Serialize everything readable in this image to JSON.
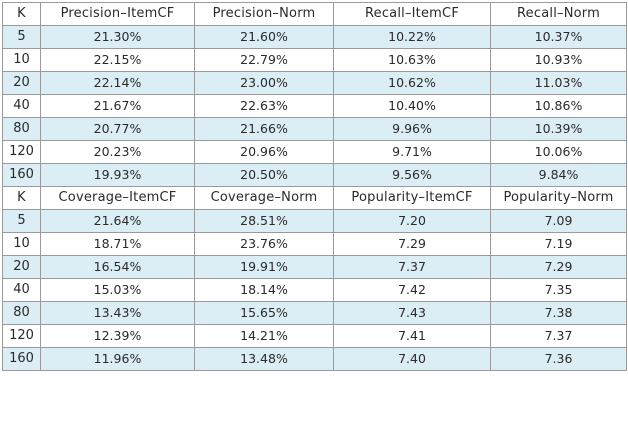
{
  "table": {
    "section1": {
      "headers": [
        "K",
        "Precision–ItemCF",
        "Precision–Norm",
        "Recall–ItemCF",
        "Recall–Norm"
      ],
      "rows": [
        [
          "5",
          "21.30%",
          "21.60%",
          "10.22%",
          "10.37%"
        ],
        [
          "10",
          "22.15%",
          "22.79%",
          "10.63%",
          "10.93%"
        ],
        [
          "20",
          "22.14%",
          "23.00%",
          "10.62%",
          "11.03%"
        ],
        [
          "40",
          "21.67%",
          "22.63%",
          "10.40%",
          "10.86%"
        ],
        [
          "80",
          "20.77%",
          "21.66%",
          "9.96%",
          "10.39%"
        ],
        [
          "120",
          "20.23%",
          "20.96%",
          "9.71%",
          "10.06%"
        ],
        [
          "160",
          "19.93%",
          "20.50%",
          "9.56%",
          "9.84%"
        ]
      ]
    },
    "section2": {
      "headers": [
        "K",
        "Coverage–ItemCF",
        "Coverage–Norm",
        "Popularity–ItemCF",
        "Popularity–Norm"
      ],
      "rows": [
        [
          "5",
          "21.64%",
          "28.51%",
          "7.20",
          "7.09"
        ],
        [
          "10",
          "18.71%",
          "23.76%",
          "7.29",
          "7.19"
        ],
        [
          "20",
          "16.54%",
          "19.91%",
          "7.37",
          "7.29"
        ],
        [
          "40",
          "15.03%",
          "18.14%",
          "7.42",
          "7.35"
        ],
        [
          "80",
          "13.43%",
          "15.65%",
          "7.43",
          "7.38"
        ],
        [
          "120",
          "12.39%",
          "14.21%",
          "7.41",
          "7.37"
        ],
        [
          "160",
          "11.96%",
          "13.48%",
          "7.40",
          "7.36"
        ]
      ]
    }
  },
  "colors": {
    "shaded_row": "#dbeef6",
    "border": "#9a9a9a",
    "text": "#2a2a2a"
  }
}
